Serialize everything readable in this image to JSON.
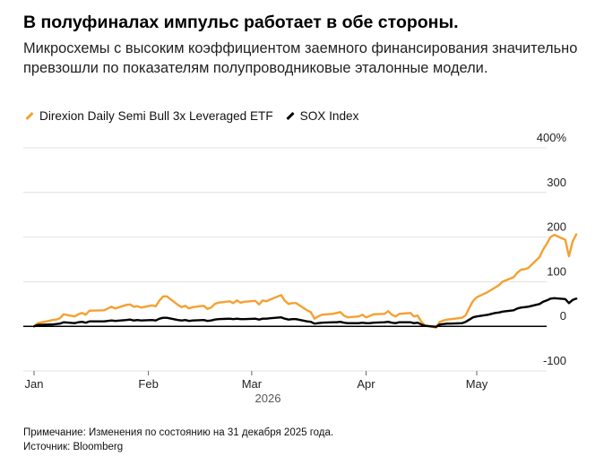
{
  "title": "В полуфиналах импульс работает в обе стороны.",
  "subtitle": "Микросхемы с высоким коэффициентом заемного финансирования значительно превзошли по показателям полупроводниковые эталонные модели.",
  "note": "Примечание: Изменения по состоянию на 31 декабря 2025 года.",
  "source": "Источник: Bloomberg",
  "colors": {
    "soxl": "#f5a031",
    "sox": "#000000",
    "grid": "#e0e0e0",
    "zero": "#000000"
  },
  "chart_data": {
    "type": "line",
    "xlabel": "2026",
    "ylabel": "",
    "ylim": [
      -100,
      400
    ],
    "y_ticks": [
      400,
      300,
      200,
      100,
      0,
      -100
    ],
    "y_tick_labels": [
      "400%",
      "300",
      "200",
      "100",
      "0",
      "-100"
    ],
    "x_ticks": [
      "2026-01-01",
      "2026-02-01",
      "2026-03-01",
      "2026-04-01",
      "2026-05-01"
    ],
    "x_tick_labels": [
      "Jan",
      "Feb",
      "Mar",
      "Apr",
      "May"
    ],
    "x_range": [
      "2026-01-01",
      "2026-05-28"
    ],
    "grid": true,
    "legend_position": "top-left",
    "series": [
      {
        "name": "Direxion Daily Semi Bull 3x Leveraged ETF",
        "points": [
          [
            "2026-01-01",
            0
          ],
          [
            "2026-01-02",
            7
          ],
          [
            "2026-01-05",
            12
          ],
          [
            "2026-01-06",
            14
          ],
          [
            "2026-01-07",
            15
          ],
          [
            "2026-01-08",
            18
          ],
          [
            "2026-01-09",
            27
          ],
          [
            "2026-01-12",
            22
          ],
          [
            "2026-01-13",
            27
          ],
          [
            "2026-01-14",
            30
          ],
          [
            "2026-01-15",
            26
          ],
          [
            "2026-01-16",
            35
          ],
          [
            "2026-01-20",
            36
          ],
          [
            "2026-01-21",
            40
          ],
          [
            "2026-01-22",
            44
          ],
          [
            "2026-01-23",
            40
          ],
          [
            "2026-01-26",
            48
          ],
          [
            "2026-01-27",
            49
          ],
          [
            "2026-01-28",
            44
          ],
          [
            "2026-01-29",
            45
          ],
          [
            "2026-01-30",
            42
          ],
          [
            "2026-02-02",
            47
          ],
          [
            "2026-02-03",
            45
          ],
          [
            "2026-02-04",
            58
          ],
          [
            "2026-02-05",
            67
          ],
          [
            "2026-02-06",
            67
          ],
          [
            "2026-02-09",
            48
          ],
          [
            "2026-02-10",
            43
          ],
          [
            "2026-02-11",
            46
          ],
          [
            "2026-02-12",
            40
          ],
          [
            "2026-02-13",
            43
          ],
          [
            "2026-02-16",
            46
          ],
          [
            "2026-02-17",
            39
          ],
          [
            "2026-02-18",
            42
          ],
          [
            "2026-02-19",
            50
          ],
          [
            "2026-02-20",
            53
          ],
          [
            "2026-02-23",
            56
          ],
          [
            "2026-02-24",
            52
          ],
          [
            "2026-02-25",
            58
          ],
          [
            "2026-02-26",
            53
          ],
          [
            "2026-02-27",
            55
          ],
          [
            "2026-03-02",
            57
          ],
          [
            "2026-03-03",
            49
          ],
          [
            "2026-03-04",
            58
          ],
          [
            "2026-03-05",
            56
          ],
          [
            "2026-03-06",
            60
          ],
          [
            "2026-03-09",
            70
          ],
          [
            "2026-03-10",
            57
          ],
          [
            "2026-03-11",
            50
          ],
          [
            "2026-03-12",
            52
          ],
          [
            "2026-03-13",
            52
          ],
          [
            "2026-03-16",
            36
          ],
          [
            "2026-03-17",
            32
          ],
          [
            "2026-03-18",
            17
          ],
          [
            "2026-03-19",
            22
          ],
          [
            "2026-03-20",
            26
          ],
          [
            "2026-03-23",
            28
          ],
          [
            "2026-03-24",
            30
          ],
          [
            "2026-03-25",
            32
          ],
          [
            "2026-03-26",
            24
          ],
          [
            "2026-03-27",
            20
          ],
          [
            "2026-03-30",
            22
          ],
          [
            "2026-03-31",
            26
          ],
          [
            "2026-04-01",
            20
          ],
          [
            "2026-04-02",
            23
          ],
          [
            "2026-04-03",
            27
          ],
          [
            "2026-04-06",
            28
          ],
          [
            "2026-04-07",
            34
          ],
          [
            "2026-04-08",
            26
          ],
          [
            "2026-04-09",
            22
          ],
          [
            "2026-04-10",
            28
          ],
          [
            "2026-04-13",
            30
          ],
          [
            "2026-04-14",
            22
          ],
          [
            "2026-04-15",
            24
          ],
          [
            "2026-04-16",
            10
          ],
          [
            "2026-04-17",
            2
          ],
          [
            "2026-04-20",
            -3
          ],
          [
            "2026-04-21",
            10
          ],
          [
            "2026-04-22",
            13
          ],
          [
            "2026-04-23",
            15
          ],
          [
            "2026-04-24",
            16
          ],
          [
            "2026-04-27",
            19
          ],
          [
            "2026-04-28",
            25
          ],
          [
            "2026-04-29",
            42
          ],
          [
            "2026-04-30",
            57
          ],
          [
            "2026-05-01",
            65
          ],
          [
            "2026-05-04",
            77
          ],
          [
            "2026-05-05",
            82
          ],
          [
            "2026-05-06",
            87
          ],
          [
            "2026-05-07",
            92
          ],
          [
            "2026-05-08",
            100
          ],
          [
            "2026-05-11",
            110
          ],
          [
            "2026-05-12",
            120
          ],
          [
            "2026-05-13",
            127
          ],
          [
            "2026-05-14",
            128
          ],
          [
            "2026-05-15",
            131
          ],
          [
            "2026-05-18",
            155
          ],
          [
            "2026-05-19",
            172
          ],
          [
            "2026-05-20",
            185
          ],
          [
            "2026-05-21",
            200
          ],
          [
            "2026-05-22",
            205
          ],
          [
            "2026-05-25",
            194
          ],
          [
            "2026-05-26",
            157
          ],
          [
            "2026-05-27",
            190
          ],
          [
            "2026-05-28",
            206
          ]
        ]
      },
      {
        "name": "SOX Index",
        "points": [
          [
            "2026-01-01",
            0
          ],
          [
            "2026-01-02",
            3
          ],
          [
            "2026-01-05",
            4
          ],
          [
            "2026-01-06",
            4
          ],
          [
            "2026-01-07",
            5
          ],
          [
            "2026-01-08",
            6
          ],
          [
            "2026-01-09",
            9
          ],
          [
            "2026-01-12",
            7
          ],
          [
            "2026-01-13",
            9
          ],
          [
            "2026-01-14",
            10
          ],
          [
            "2026-01-15",
            8
          ],
          [
            "2026-01-16",
            11
          ],
          [
            "2026-01-20",
            11
          ],
          [
            "2026-01-21",
            12
          ],
          [
            "2026-01-22",
            13
          ],
          [
            "2026-01-23",
            12
          ],
          [
            "2026-01-26",
            14
          ],
          [
            "2026-01-27",
            15
          ],
          [
            "2026-01-28",
            13
          ],
          [
            "2026-01-29",
            14
          ],
          [
            "2026-01-30",
            13
          ],
          [
            "2026-02-02",
            14
          ],
          [
            "2026-02-03",
            13
          ],
          [
            "2026-02-04",
            17
          ],
          [
            "2026-02-05",
            19
          ],
          [
            "2026-02-06",
            19
          ],
          [
            "2026-02-09",
            14
          ],
          [
            "2026-02-10",
            13
          ],
          [
            "2026-02-11",
            14
          ],
          [
            "2026-02-12",
            12
          ],
          [
            "2026-02-13",
            13
          ],
          [
            "2026-02-16",
            14
          ],
          [
            "2026-02-17",
            12
          ],
          [
            "2026-02-18",
            13
          ],
          [
            "2026-02-19",
            15
          ],
          [
            "2026-02-20",
            16
          ],
          [
            "2026-02-23",
            17
          ],
          [
            "2026-02-24",
            16
          ],
          [
            "2026-02-25",
            17
          ],
          [
            "2026-02-26",
            16
          ],
          [
            "2026-02-27",
            16
          ],
          [
            "2026-03-02",
            17
          ],
          [
            "2026-03-03",
            15
          ],
          [
            "2026-03-04",
            17
          ],
          [
            "2026-03-05",
            17
          ],
          [
            "2026-03-06",
            18
          ],
          [
            "2026-03-09",
            20
          ],
          [
            "2026-03-10",
            17
          ],
          [
            "2026-03-11",
            15
          ],
          [
            "2026-03-12",
            16
          ],
          [
            "2026-03-13",
            16
          ],
          [
            "2026-03-16",
            11
          ],
          [
            "2026-03-17",
            10
          ],
          [
            "2026-03-18",
            6
          ],
          [
            "2026-03-19",
            7
          ],
          [
            "2026-03-20",
            8
          ],
          [
            "2026-03-23",
            9
          ],
          [
            "2026-03-24",
            9
          ],
          [
            "2026-03-25",
            10
          ],
          [
            "2026-03-26",
            8
          ],
          [
            "2026-03-27",
            7
          ],
          [
            "2026-03-30",
            7
          ],
          [
            "2026-03-31",
            8
          ],
          [
            "2026-04-01",
            7
          ],
          [
            "2026-04-02",
            7
          ],
          [
            "2026-04-03",
            8
          ],
          [
            "2026-04-06",
            9
          ],
          [
            "2026-04-07",
            10
          ],
          [
            "2026-04-08",
            8
          ],
          [
            "2026-04-09",
            7
          ],
          [
            "2026-04-10",
            9
          ],
          [
            "2026-04-13",
            9
          ],
          [
            "2026-04-14",
            7
          ],
          [
            "2026-04-15",
            8
          ],
          [
            "2026-04-16",
            4
          ],
          [
            "2026-04-17",
            1
          ],
          [
            "2026-04-20",
            -1
          ],
          [
            "2026-04-21",
            4
          ],
          [
            "2026-04-22",
            5
          ],
          [
            "2026-04-23",
            6
          ],
          [
            "2026-04-24",
            6
          ],
          [
            "2026-04-27",
            7
          ],
          [
            "2026-04-28",
            10
          ],
          [
            "2026-04-29",
            15
          ],
          [
            "2026-04-30",
            20
          ],
          [
            "2026-05-01",
            22
          ],
          [
            "2026-05-04",
            26
          ],
          [
            "2026-05-05",
            28
          ],
          [
            "2026-05-06",
            30
          ],
          [
            "2026-05-07",
            31
          ],
          [
            "2026-05-08",
            33
          ],
          [
            "2026-05-11",
            36
          ],
          [
            "2026-05-12",
            40
          ],
          [
            "2026-05-13",
            42
          ],
          [
            "2026-05-14",
            43
          ],
          [
            "2026-05-15",
            44
          ],
          [
            "2026-05-18",
            50
          ],
          [
            "2026-05-19",
            55
          ],
          [
            "2026-05-20",
            58
          ],
          [
            "2026-05-21",
            62
          ],
          [
            "2026-05-22",
            63
          ],
          [
            "2026-05-25",
            61
          ],
          [
            "2026-05-26",
            52
          ],
          [
            "2026-05-27",
            59
          ],
          [
            "2026-05-28",
            62
          ]
        ]
      }
    ]
  }
}
